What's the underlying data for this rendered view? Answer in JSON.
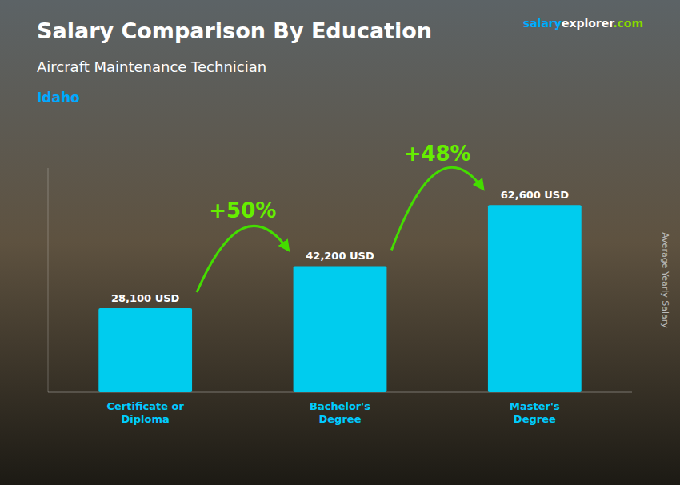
{
  "chart_data": {
    "type": "bar",
    "title": "Salary Comparison By Education",
    "subtitle": "Aircraft Maintenance Technician",
    "location": "Idaho",
    "brand": [
      "salary",
      "explorer",
      ".com"
    ],
    "y_label": "Average Yearly Salary",
    "categories": [
      "Certificate or\nDiploma",
      "Bachelor's\nDegree",
      "Master's\nDegree"
    ],
    "values": [
      28100,
      42200,
      62600
    ],
    "value_labels": [
      "28,100 USD",
      "42,200 USD",
      "62,600 USD"
    ],
    "data_labels": true,
    "annotations": [
      "+50%",
      "+48%"
    ],
    "color": "#00ccee",
    "ylim": [
      0,
      75000
    ],
    "grid": false,
    "tick_labels": "x"
  }
}
